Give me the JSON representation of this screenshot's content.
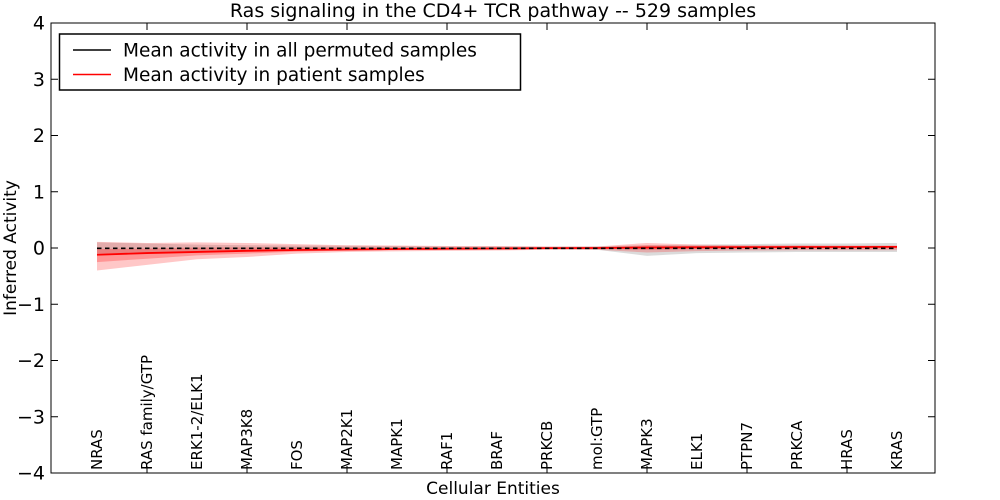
{
  "chart_data": {
    "type": "line",
    "title": "Ras signaling in the CD4+ TCR pathway -- 529 samples",
    "xlabel": "Cellular Entities",
    "ylabel": "Inferred Activity",
    "ylim": [
      -4,
      4
    ],
    "grid": false,
    "legend_position": "upper left",
    "ytick_values": [
      4,
      3,
      2,
      1,
      0,
      -1,
      -2,
      -3,
      -4
    ],
    "ytick_labels": [
      "4",
      "3",
      "2",
      "1",
      "0",
      "−1",
      "−2",
      "−3",
      "−4"
    ],
    "xtick_mark_indices": [
      1,
      3,
      5,
      7,
      9,
      11,
      13,
      15
    ],
    "categories": [
      "NRAS",
      "RAS family/GTP",
      "ERK1-2/ELK1",
      "MAP3K8",
      "FOS",
      "MAP2K1",
      "MAPK1",
      "RAF1",
      "BRAF",
      "PRKCB",
      "mol:GTP",
      "MAPK3",
      "ELK1",
      "PTPN7",
      "PRKCA",
      "HRAS",
      "KRAS"
    ],
    "series": [
      {
        "name": "Mean activity in all permuted samples",
        "color": "#000000",
        "style": "dashed",
        "values": [
          -0.005,
          -0.005,
          -0.005,
          -0.005,
          -0.005,
          -0.005,
          -0.005,
          -0.005,
          -0.005,
          -0.005,
          -0.005,
          -0.005,
          -0.005,
          -0.005,
          -0.005,
          -0.005,
          -0.005
        ]
      },
      {
        "name": "Mean activity in patient samples",
        "color": "#ff0000",
        "style": "solid",
        "values": [
          -0.12,
          -0.09,
          -0.07,
          -0.05,
          -0.035,
          -0.027,
          -0.018,
          -0.012,
          -0.009,
          -0.002,
          0.0,
          0.008,
          0.012,
          0.015,
          0.018,
          0.018,
          0.02
        ]
      }
    ],
    "bands": [
      {
        "name": "permuted-samples-spread",
        "color": "#999999",
        "opacity": 0.35,
        "upper": [
          0.1,
          0.08,
          0.06,
          0.05,
          0.045,
          0.04,
          0.035,
          0.03,
          0.03,
          0.025,
          0.03,
          0.05,
          0.06,
          0.07,
          0.08,
          0.08,
          0.09
        ],
        "lower": [
          -0.1,
          -0.08,
          -0.06,
          -0.05,
          -0.045,
          -0.04,
          -0.035,
          -0.03,
          -0.03,
          -0.025,
          -0.03,
          -0.14,
          -0.09,
          -0.08,
          -0.07,
          -0.07,
          -0.07
        ]
      },
      {
        "name": "patient-samples-spread-outer",
        "color": "#ff0000",
        "opacity": 0.22,
        "upper": [
          0.11,
          0.09,
          0.1,
          0.09,
          0.07,
          0.05,
          0.045,
          0.035,
          0.035,
          0.027,
          0.027,
          0.09,
          0.06,
          0.05,
          0.05,
          0.045,
          0.045
        ],
        "lower": [
          -0.4,
          -0.3,
          -0.2,
          -0.16,
          -0.1,
          -0.07,
          -0.06,
          -0.05,
          -0.045,
          -0.03,
          -0.03,
          -0.08,
          -0.055,
          -0.045,
          -0.04,
          -0.04,
          -0.04
        ]
      },
      {
        "name": "patient-samples-spread-inner",
        "color": "#ff0000",
        "opacity": 0.25,
        "upper": [
          -0.02,
          -0.01,
          0.01,
          0.012,
          0.012,
          0.008,
          0.01,
          0.01,
          0.011,
          0.012,
          0.012,
          0.046,
          0.034,
          0.031,
          0.032,
          0.03,
          0.031
        ],
        "lower": [
          -0.25,
          -0.19,
          -0.13,
          -0.1,
          -0.065,
          -0.047,
          -0.037,
          -0.028,
          -0.025,
          -0.015,
          -0.012,
          -0.03,
          -0.018,
          -0.012,
          -0.008,
          -0.008,
          -0.007
        ]
      }
    ],
    "legend": {
      "entries": [
        {
          "label": "Mean activity in all permuted samples",
          "color": "#000000"
        },
        {
          "label": "Mean activity in patient samples",
          "color": "#ff0000"
        }
      ]
    }
  }
}
